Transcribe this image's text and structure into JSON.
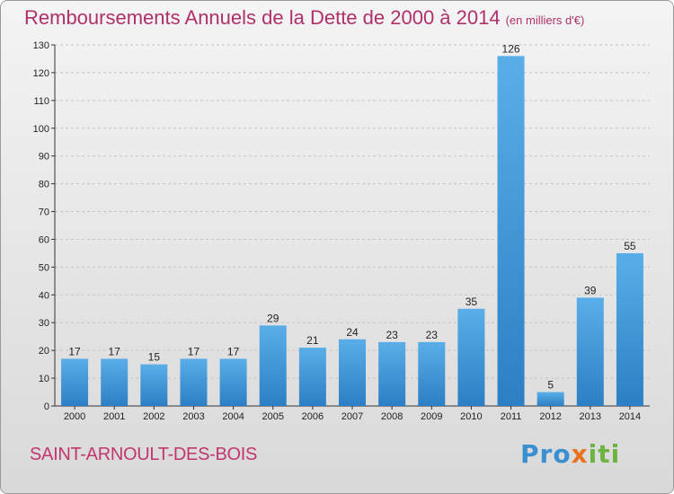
{
  "header": {
    "title": "Remboursements Annuels de la Dette de 2000 à 2014",
    "subtitle": "(en milliers d'€)"
  },
  "footer": {
    "commune": "SAINT-ARNOULT-DES-BOIS",
    "logo_parts": [
      "Pro",
      "x",
      "iti"
    ]
  },
  "colors": {
    "title": "#b0306b",
    "bar_light": "#5aaee8",
    "bar_dark": "#2c7fc4"
  },
  "chart_data": {
    "type": "bar",
    "categories": [
      "2000",
      "2001",
      "2002",
      "2003",
      "2004",
      "2005",
      "2006",
      "2007",
      "2008",
      "2009",
      "2010",
      "2011",
      "2012",
      "2013",
      "2014"
    ],
    "values": [
      17,
      17,
      15,
      17,
      17,
      29,
      21,
      24,
      23,
      23,
      35,
      126,
      5,
      39,
      55
    ],
    "title": "Remboursements Annuels de la Dette de 2000 à 2014",
    "xlabel": "",
    "ylabel": "",
    "ylim": [
      0,
      130
    ],
    "yticks": [
      0,
      10,
      20,
      30,
      40,
      50,
      60,
      70,
      80,
      90,
      100,
      110,
      120,
      130
    ],
    "grid": true,
    "legend": "none"
  }
}
